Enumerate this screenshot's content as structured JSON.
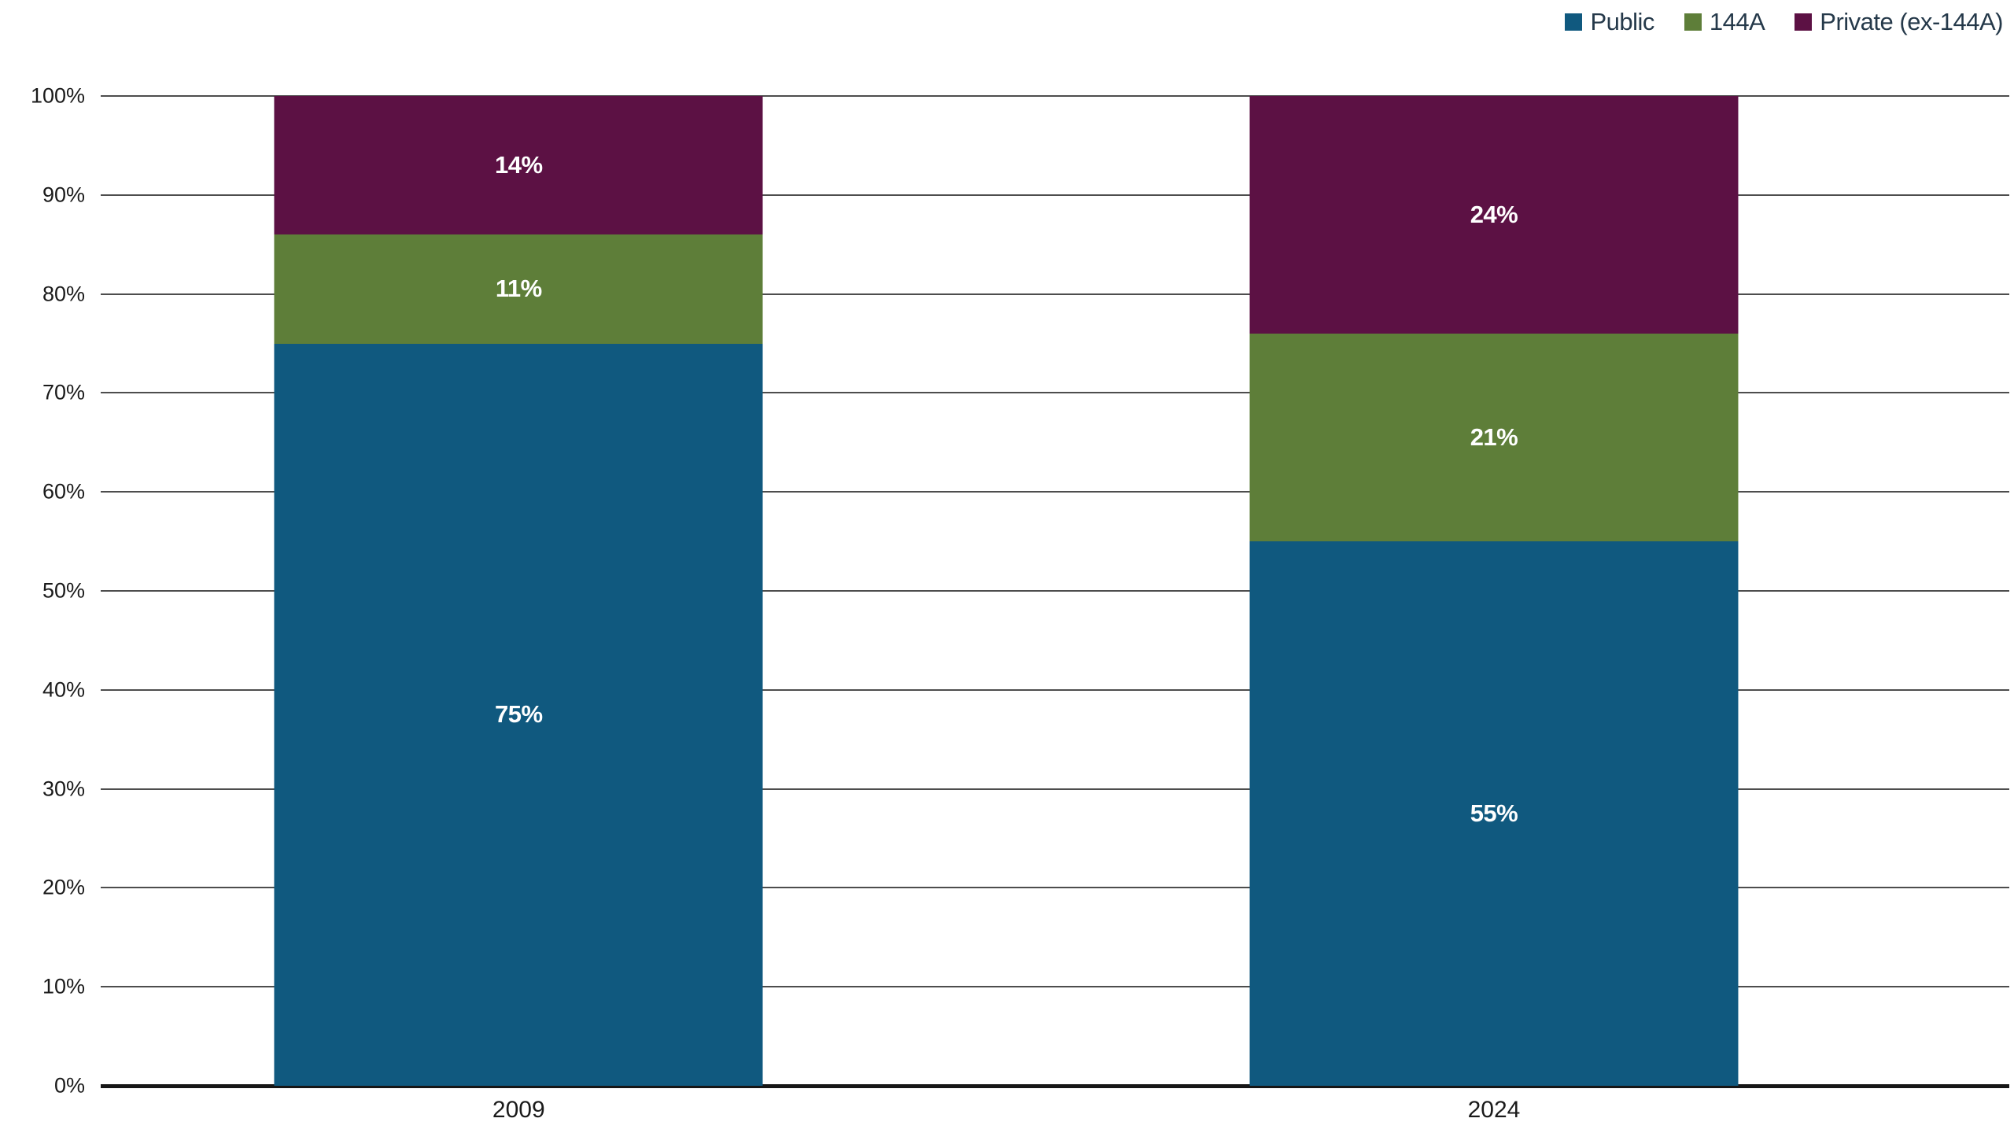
{
  "legend": {
    "items": [
      {
        "label": "Public",
        "color": "#10597f"
      },
      {
        "label": "144A",
        "color": "#5e7e39"
      },
      {
        "label": "Private (ex-144A)",
        "color": "#5c1144"
      }
    ]
  },
  "chart_data": {
    "type": "bar",
    "stacked": true,
    "percent_scale": true,
    "title": "",
    "xlabel": "",
    "ylabel": "",
    "categories": [
      "2009",
      "2024"
    ],
    "series": [
      {
        "name": "Public",
        "color": "#10597f",
        "values": [
          75,
          55
        ]
      },
      {
        "name": "144A",
        "color": "#5e7e39",
        "values": [
          11,
          21
        ]
      },
      {
        "name": "Private (ex-144A)",
        "color": "#5c1144",
        "values": [
          14,
          24
        ]
      }
    ],
    "segment_labels": [
      [
        "75%",
        "55%"
      ],
      [
        "11%",
        "21%"
      ],
      [
        "14%",
        "24%"
      ]
    ],
    "ylim": [
      0,
      100
    ],
    "ytick_step": 10,
    "ytick_labels": [
      "0%",
      "10%",
      "20%",
      "30%",
      "40%",
      "50%",
      "60%",
      "70%",
      "80%",
      "90%",
      "100%"
    ],
    "xtick_labels": [
      "2009",
      "2024"
    ],
    "grid": true,
    "gridline_color": "#4d4d4d",
    "baseline_color": "#161616",
    "legend_position": "top-right",
    "bar_center_percents": [
      21.9,
      73.0
    ]
  }
}
